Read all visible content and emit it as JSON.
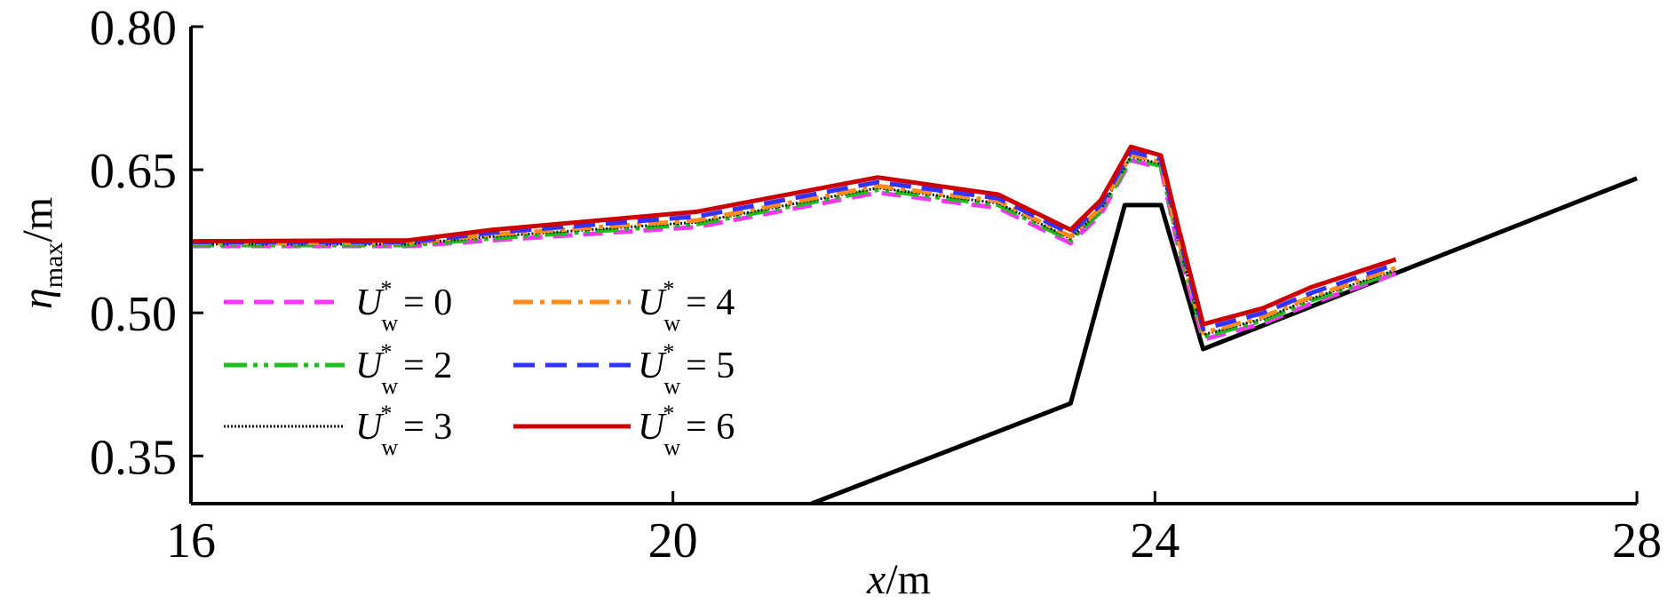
{
  "chart_data": {
    "type": "line",
    "xlabel": "x/m",
    "ylabel": "η_max/m",
    "xlim": [
      16,
      28
    ],
    "ylim": [
      0.3,
      0.8
    ],
    "xticks": [
      "16",
      "20",
      "24",
      "28"
    ],
    "xtick_values": [
      16,
      20,
      24,
      28
    ],
    "yticks": [
      "0.35",
      "0.50",
      "0.65",
      "0.80"
    ],
    "ytick_values": [
      0.35,
      0.5,
      0.65,
      0.8
    ],
    "grid": false,
    "legend_position": "left",
    "series": [
      {
        "name": "U*w = 0",
        "U": "U",
        "w": "w",
        "val": "0",
        "color": "#ff33ff",
        "dash": "22,12",
        "x": [
          16,
          17.8,
          18.5,
          20.2,
          21.7,
          22.7,
          23.3,
          23.55,
          23.8,
          24.05,
          24.2,
          24.4,
          24.9,
          25.3,
          26.0
        ],
        "y": [
          0.57,
          0.57,
          0.576,
          0.59,
          0.626,
          0.61,
          0.573,
          0.603,
          0.66,
          0.652,
          0.565,
          0.472,
          0.489,
          0.51,
          0.541
        ]
      },
      {
        "name": "U*w = 2",
        "U": "U",
        "w": "w",
        "val": "2",
        "color": "#22bb22",
        "dash": "26,7,5,7,5,7",
        "x": [
          16,
          17.8,
          18.5,
          20.2,
          21.7,
          22.7,
          23.3,
          23.55,
          23.8,
          24.05,
          24.2,
          24.4,
          24.9,
          25.3,
          26.0
        ],
        "y": [
          0.571,
          0.571,
          0.578,
          0.593,
          0.629,
          0.613,
          0.576,
          0.606,
          0.662,
          0.654,
          0.57,
          0.475,
          0.492,
          0.513,
          0.543
        ]
      },
      {
        "name": "U*w = 3",
        "U": "U",
        "w": "w",
        "val": "3",
        "color": "#111111",
        "dash": "2,2",
        "x": [
          16,
          17.8,
          18.5,
          20.2,
          21.7,
          22.7,
          23.3,
          23.55,
          23.8,
          24.05,
          24.2,
          24.4,
          24.9,
          25.3,
          26.0
        ],
        "y": [
          0.572,
          0.572,
          0.58,
          0.595,
          0.631,
          0.615,
          0.578,
          0.608,
          0.664,
          0.656,
          0.572,
          0.477,
          0.494,
          0.515,
          0.545
        ]
      },
      {
        "name": "U*w = 4",
        "U": "U",
        "w": "w",
        "val": "4",
        "color": "#ff8c1a",
        "dash": "22,8,5,8",
        "x": [
          16,
          17.8,
          18.5,
          20.2,
          21.7,
          22.7,
          23.3,
          23.55,
          23.8,
          24.05,
          24.2,
          24.4,
          24.9,
          25.3,
          26.0
        ],
        "y": [
          0.573,
          0.573,
          0.582,
          0.597,
          0.633,
          0.617,
          0.58,
          0.61,
          0.666,
          0.658,
          0.575,
          0.479,
          0.496,
          0.517,
          0.547
        ]
      },
      {
        "name": "U*w = 5",
        "U": "U",
        "w": "w",
        "val": "5",
        "color": "#3333ff",
        "dash": "24,12",
        "x": [
          16,
          17.8,
          18.5,
          20.2,
          21.7,
          22.7,
          23.3,
          23.55,
          23.8,
          24.05,
          24.2,
          24.4,
          24.9,
          25.3,
          26.0
        ],
        "y": [
          0.574,
          0.574,
          0.584,
          0.601,
          0.637,
          0.62,
          0.583,
          0.613,
          0.669,
          0.661,
          0.58,
          0.483,
          0.5,
          0.521,
          0.551
        ]
      },
      {
        "name": "U*w = 6",
        "U": "U",
        "w": "w",
        "val": "6",
        "color": "#cc0000",
        "dash": "",
        "x": [
          16,
          17.8,
          18.5,
          20.2,
          21.7,
          22.7,
          23.3,
          23.55,
          23.8,
          24.05,
          24.2,
          24.4,
          24.9,
          25.3,
          26.0
        ],
        "y": [
          0.575,
          0.576,
          0.587,
          0.606,
          0.642,
          0.624,
          0.587,
          0.618,
          0.674,
          0.665,
          0.587,
          0.488,
          0.505,
          0.527,
          0.556
        ]
      }
    ],
    "bathymetry": {
      "name": "bottom",
      "color": "#000000",
      "x": [
        21.15,
        23.3,
        23.75,
        24.05,
        24.4,
        28
      ],
      "y": [
        0.3,
        0.405,
        0.613,
        0.613,
        0.462,
        0.641
      ]
    }
  }
}
